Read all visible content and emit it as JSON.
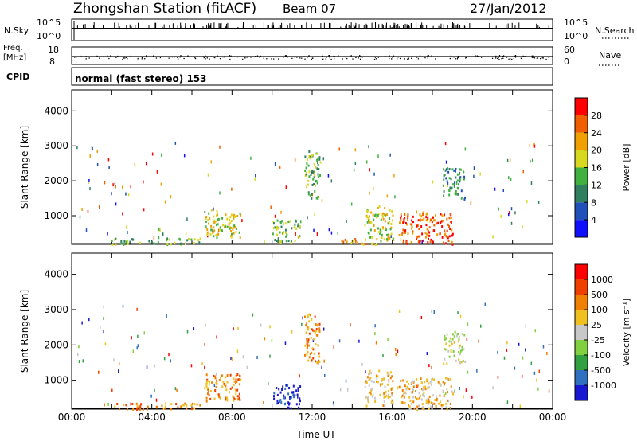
{
  "header": {
    "station": "Zhongshan Station (fitACF)",
    "beam": "Beam 07",
    "date": "27/Jan/2012"
  },
  "strips": {
    "nsky_label": "N.Sky",
    "nsky_ticks": [
      "10^5",
      "10^0"
    ],
    "nsearch_label": "N.Search",
    "nsearch_ticks": [
      "10^5",
      "10^0"
    ],
    "freq_label_1": "Freq.",
    "freq_label_2": "[MHz]",
    "freq_ticks": [
      "18",
      "8"
    ],
    "nave_label": "Nave",
    "nave_ticks": [
      "60",
      "0"
    ],
    "cpid_label": "CPID",
    "cpid_text": "normal (fast stereo) 153"
  },
  "chart_data": [
    {
      "type": "heatmap",
      "name": "Power",
      "ylabel": "Slant Range [km]",
      "yticks": [
        "1000",
        "2000",
        "3000",
        "4000"
      ],
      "ylim": [
        180,
        4600
      ],
      "xticks": [
        "00:00",
        "04:00",
        "08:00",
        "12:00",
        "16:00",
        "20:00",
        "00:00"
      ],
      "xlim_hours": [
        0,
        24
      ],
      "colorbar": {
        "label": "Power [dB]",
        "ticks": [
          "4",
          "8",
          "12",
          "16",
          "20",
          "24",
          "28"
        ],
        "colors": [
          "#1010ff",
          "#2050b8",
          "#308060",
          "#40b040",
          "#d8d820",
          "#f0a000",
          "#f06000",
          "#ff0000"
        ]
      },
      "clusters": [
        {
          "t0": 1.9,
          "t1": 6.4,
          "r0": 200,
          "r1": 380,
          "level": 3
        },
        {
          "t0": 6.6,
          "t1": 8.4,
          "r0": 400,
          "r1": 1200,
          "level": 4
        },
        {
          "t0": 10.0,
          "t1": 11.4,
          "r0": 220,
          "r1": 900,
          "level": 3
        },
        {
          "t0": 11.6,
          "t1": 12.4,
          "r0": 1500,
          "r1": 2900,
          "level": 3
        },
        {
          "t0": 13.4,
          "t1": 15.2,
          "r0": 200,
          "r1": 380,
          "level": 5
        },
        {
          "t0": 14.6,
          "t1": 16.0,
          "r0": 300,
          "r1": 1300,
          "level": 4
        },
        {
          "t0": 16.3,
          "t1": 19.0,
          "r0": 200,
          "r1": 1100,
          "level": 6
        },
        {
          "t0": 18.5,
          "t1": 19.6,
          "r0": 1500,
          "r1": 2400,
          "level": 2
        }
      ]
    },
    {
      "type": "heatmap",
      "name": "Velocity",
      "ylabel": "Slant Range [km]",
      "yticks": [
        "1000",
        "2000",
        "3000",
        "4000"
      ],
      "ylim": [
        180,
        4600
      ],
      "xticks": [
        "00:00",
        "04:00",
        "08:00",
        "12:00",
        "16:00",
        "20:00",
        "00:00"
      ],
      "xlabel": "Time UT",
      "xlim_hours": [
        0,
        24
      ],
      "colorbar": {
        "label": "Velocity [m s^-1]",
        "ticks": [
          "1000",
          "500",
          "100",
          "25",
          "-25",
          "-100",
          "-500",
          "-1000"
        ],
        "colors": [
          "#1818d0",
          "#3070c0",
          "#30a040",
          "#80d040",
          "#c8c8c8",
          "#f0c020",
          "#f08000",
          "#f04000",
          "#ff0000"
        ]
      },
      "clusters": [
        {
          "t0": 1.9,
          "t1": 6.4,
          "r0": 200,
          "r1": 380,
          "level": 6
        },
        {
          "t0": 6.6,
          "t1": 8.4,
          "r0": 400,
          "r1": 1200,
          "level": 6
        },
        {
          "t0": 10.0,
          "t1": 11.4,
          "r0": 220,
          "r1": 900,
          "level": 0
        },
        {
          "t0": 11.6,
          "t1": 12.4,
          "r0": 1500,
          "r1": 2900,
          "level": 6
        },
        {
          "t0": 14.6,
          "t1": 16.0,
          "r0": 300,
          "r1": 1300,
          "level": 5
        },
        {
          "t0": 16.3,
          "t1": 19.0,
          "r0": 200,
          "r1": 1100,
          "level": 5
        },
        {
          "t0": 18.5,
          "t1": 19.6,
          "r0": 1500,
          "r1": 2400,
          "level": 4
        }
      ]
    }
  ]
}
